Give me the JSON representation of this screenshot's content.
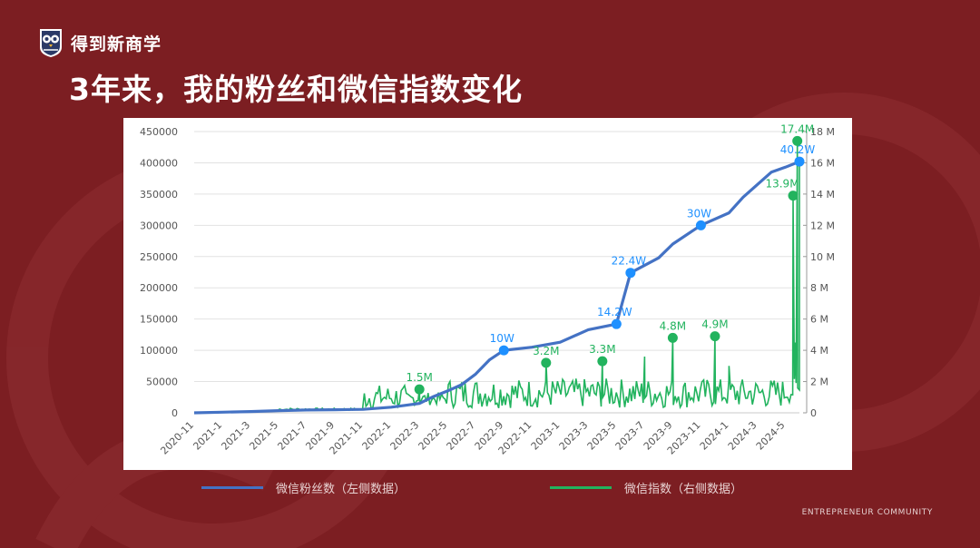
{
  "brand": {
    "name": "得到新商学",
    "logo_icon": "owl-shield-logo"
  },
  "title": "3年来，我的粉丝和微信指数变化",
  "footer": "ENTREPRENEUR COMMUNITY",
  "legend": {
    "fans": "微信粉丝数（左侧数据）",
    "index": "微信指数（右侧数据）"
  },
  "colors": {
    "background": "#7c1e22",
    "fans": "#4472c4",
    "fans_marker": "#1e90ff",
    "index": "#22b35e"
  },
  "chart_data": {
    "type": "line",
    "x_ticks": [
      "2020-11",
      "2021-1",
      "2021-3",
      "2021-5",
      "2021-7",
      "2021-9",
      "2021-11",
      "2022-1",
      "2022-3",
      "2022-5",
      "2022-7",
      "2022-9",
      "2022-11",
      "2023-1",
      "2023-3",
      "2023-5",
      "2023-7",
      "2023-9",
      "2023-11",
      "2024-1",
      "2024-3",
      "2024-5"
    ],
    "y_left": {
      "min": 0,
      "max": 450000,
      "ticks": [
        "0",
        "50000",
        "100000",
        "150000",
        "200000",
        "250000",
        "300000",
        "350000",
        "400000",
        "450000"
      ]
    },
    "y_right": {
      "min": 0,
      "max": 18,
      "ticks": [
        "0",
        "2 M",
        "4 M",
        "6 M",
        "8 M",
        "10 M",
        "12 M",
        "14 M",
        "16 M",
        "18 M"
      ]
    },
    "series": [
      {
        "name": "微信粉丝数（左侧数据）",
        "axis": "left",
        "points": [
          [
            "2020-11",
            0
          ],
          [
            "2021-1",
            1000
          ],
          [
            "2021-3",
            2000
          ],
          [
            "2021-5",
            3500
          ],
          [
            "2021-7",
            4500
          ],
          [
            "2021-9",
            5000
          ],
          [
            "2021-11",
            5500
          ],
          [
            "2022-1",
            9000
          ],
          [
            "2022-3",
            15000
          ],
          [
            "2022-4",
            26000
          ],
          [
            "2022-5",
            35000
          ],
          [
            "2022-6",
            45000
          ],
          [
            "2022-7",
            62000
          ],
          [
            "2022-8",
            85000
          ],
          [
            "2022-9",
            100000
          ],
          [
            "2022-11",
            105000
          ],
          [
            "2023-1",
            113000
          ],
          [
            "2023-3",
            133000
          ],
          [
            "2023-5",
            142000
          ],
          [
            "2023-6",
            224000
          ],
          [
            "2023-8",
            248000
          ],
          [
            "2023-9",
            270000
          ],
          [
            "2023-11",
            300000
          ],
          [
            "2024-1",
            320000
          ],
          [
            "2024-2",
            345000
          ],
          [
            "2024-3",
            365000
          ],
          [
            "2024-4",
            385000
          ],
          [
            "2024-5",
            393000
          ],
          [
            "2024-6",
            402000
          ]
        ],
        "annotations": [
          {
            "x": "2022-9",
            "y": 100000,
            "label": "10W"
          },
          {
            "x": "2023-5",
            "y": 142000,
            "label": "14.2W"
          },
          {
            "x": "2023-6",
            "y": 224000,
            "label": "22.4W"
          },
          {
            "x": "2023-11",
            "y": 300000,
            "label": "30W"
          },
          {
            "x": "2024-6",
            "y": 402000,
            "label": "40.2W"
          }
        ]
      },
      {
        "name": "微信指数（右侧数据）",
        "axis": "right",
        "annotations": [
          {
            "x": "2022-3",
            "y": 1.5,
            "label": "1.5M"
          },
          {
            "x": "2022-12",
            "y": 3.2,
            "label": "3.2M"
          },
          {
            "x": "2023-4",
            "y": 3.3,
            "label": "3.3M"
          },
          {
            "x": "2023-9",
            "y": 4.8,
            "label": "4.8M"
          },
          {
            "x": "2023-12",
            "y": 4.9,
            "label": "4.9M"
          },
          {
            "x": "2024-6",
            "y": 13.9,
            "label": "13.9M"
          },
          {
            "x": "2024-6",
            "y": 17.4,
            "label": "17.4M"
          }
        ]
      }
    ]
  }
}
